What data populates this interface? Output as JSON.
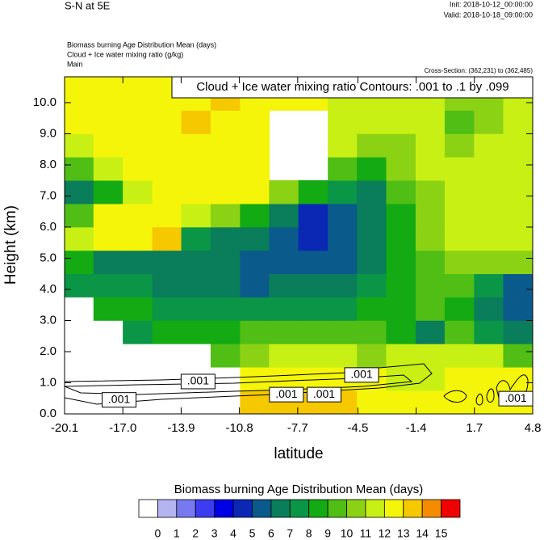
{
  "chart_data": {
    "type": "heatmap",
    "title": "S-N at 5E",
    "init": "Init: 2018-10-12_00:00:00",
    "valid": "Valid: 2018-10-18_09:00:00",
    "field_title": "Biomass burning Age Distribution Mean   (days)",
    "contour_title": "Cloud + Ice water mixing ratio   (g/kg)",
    "domain": "Main",
    "cross_section": "Cross-Section: (362,231) to (362,485)",
    "contour_note": "Cloud + Ice water mixing ratio Contours: .001 to .1 by .099",
    "x_label": "latitude",
    "y_label": "Height (km)",
    "xlim": [
      -20.1,
      4.8
    ],
    "ylim": [
      0,
      10.83
    ],
    "xticks": [
      -20.1,
      {
        "value": -17,
        "label": "-17.0"
      },
      -13.9,
      -10.8,
      -7.7,
      -4.5,
      -1.4,
      1.7,
      4.8
    ],
    "yticks": [
      {
        "value": 0,
        "label": "0.0"
      },
      {
        "value": 1,
        "label": "1.0"
      },
      {
        "value": 2,
        "label": "2.0"
      },
      {
        "value": 3,
        "label": "3.0"
      },
      {
        "value": 4,
        "label": "4.0"
      },
      {
        "value": 5,
        "label": "5.0"
      },
      {
        "value": 6,
        "label": "6.0"
      },
      {
        "value": 7,
        "label": "7.0"
      },
      {
        "value": 8,
        "label": "8.0"
      },
      {
        "value": 9,
        "label": "9.0"
      },
      {
        "value": 10,
        "label": "10.0"
      }
    ],
    "x": [
      -19.32,
      -17.77,
      -16.21,
      -14.65,
      -13.1,
      -11.54,
      -9.98,
      -8.43,
      -6.87,
      -5.31,
      -3.76,
      -2.2,
      -0.64,
      0.91,
      2.47,
      4.02
    ],
    "y": [
      0.375,
      1.125,
      1.875,
      2.625,
      3.375,
      4.125,
      4.875,
      5.625,
      6.375,
      7.125,
      7.875,
      8.625,
      9.375,
      10.125,
      10.875
    ],
    "z": [
      [
        null,
        null,
        null,
        null,
        null,
        null,
        13.5,
        13.5,
        13.5,
        13.5,
        12.5,
        12.5,
        12.5,
        12.5,
        12.5,
        12.5
      ],
      [
        null,
        null,
        null,
        null,
        null,
        null,
        12.5,
        12.5,
        12.5,
        12.5,
        12.5,
        11.5,
        11.5,
        12.5,
        12.5,
        12.5
      ],
      [
        null,
        null,
        null,
        null,
        null,
        9.5,
        10.5,
        11.5,
        11.5,
        11.5,
        10.5,
        11.5,
        11.5,
        11.5,
        11.5,
        9.5
      ],
      [
        null,
        null,
        7.5,
        8.5,
        8.5,
        8.5,
        9.5,
        9.5,
        9.5,
        9.5,
        9.5,
        8.5,
        6.5,
        9.5,
        7.5,
        6.5
      ],
      [
        null,
        8.5,
        8.5,
        7.5,
        7.5,
        7.5,
        7.5,
        7.5,
        7.5,
        7.5,
        8.5,
        8.5,
        9.5,
        8.5,
        6.5,
        5.5
      ],
      [
        7.5,
        7.5,
        7.5,
        6.5,
        6.5,
        6.5,
        5.5,
        6.5,
        6.5,
        6.5,
        7.5,
        8.5,
        9.5,
        9.5,
        7.5,
        5.5
      ],
      [
        8.5,
        6.5,
        6.5,
        6.5,
        6.5,
        6.5,
        5.5,
        5.5,
        5.5,
        5.5,
        6.5,
        8.5,
        9.5,
        10.5,
        10.5,
        10.5
      ],
      [
        11.5,
        12.5,
        12.5,
        13.5,
        7.5,
        6.5,
        6.5,
        5.5,
        4.5,
        5.5,
        6.5,
        8.5,
        10.5,
        11.5,
        11.5,
        11.5
      ],
      [
        9.5,
        12.5,
        12.5,
        12.5,
        11.5,
        10.5,
        8.5,
        6.5,
        4.5,
        5.5,
        6.5,
        8.5,
        10.5,
        11.5,
        11.5,
        11.5
      ],
      [
        6.5,
        8.5,
        11.5,
        12.5,
        12.5,
        12.5,
        12.5,
        10.5,
        8.5,
        7.5,
        6.5,
        9.5,
        10.5,
        11.5,
        11.5,
        11.5
      ],
      [
        9.5,
        11.5,
        12.5,
        12.5,
        12.5,
        12.5,
        12.5,
        null,
        null,
        9.5,
        8.5,
        10.5,
        11.5,
        11.5,
        11.5,
        11.5
      ],
      [
        11.5,
        12.5,
        12.5,
        12.5,
        12.5,
        12.5,
        12.5,
        null,
        null,
        11.5,
        10.5,
        10.5,
        11.5,
        10.5,
        11.5,
        11.5
      ],
      [
        12.5,
        12.5,
        12.5,
        12.5,
        13.5,
        12.5,
        12.5,
        null,
        null,
        11.5,
        11.5,
        11.5,
        11.5,
        9.5,
        10.5,
        11.5
      ],
      [
        12.5,
        12.5,
        12.5,
        12.5,
        12.5,
        13.5,
        12.5,
        12.5,
        12.5,
        11.5,
        11.5,
        11.5,
        11.5,
        10.5,
        10.5,
        11.5
      ],
      [
        12.5,
        12.5,
        12.5,
        12.5,
        12.5,
        13.5,
        12.5,
        12.5,
        12.5,
        11.5,
        11.5,
        11.5,
        11.5,
        10.5,
        10.5,
        11.5
      ]
    ],
    "contour_labels": [
      {
        "text": ".001",
        "x": -17.2,
        "y": 0.45
      },
      {
        "text": ".001",
        "x": -13.0,
        "y": 1.04
      },
      {
        "text": ".001",
        "x": -8.3,
        "y": 0.62
      },
      {
        "text": ".001",
        "x": -6.3,
        "y": 0.62
      },
      {
        "text": ".001",
        "x": -4.3,
        "y": 1.25
      },
      {
        "text": ".001",
        "x": 3.9,
        "y": 0.49
      }
    ],
    "colorbar": {
      "title": "Biomass burning Age Distribution Mean  (days)",
      "levels": [
        0,
        1,
        2,
        3,
        4,
        5,
        6,
        7,
        8,
        9,
        10,
        11,
        12,
        13,
        14,
        15
      ],
      "colors": [
        "#ffffff",
        "#b4b4f0",
        "#7878f0",
        "#3c3cf0",
        "#0000e6",
        "#0a28b4",
        "#0a5a8c",
        "#0a7d5a",
        "#0a9646",
        "#14aa14",
        "#50be14",
        "#8cd214",
        "#c8f014",
        "#f5f50a",
        "#f5c800",
        "#f58c00",
        "#f00000"
      ]
    }
  }
}
